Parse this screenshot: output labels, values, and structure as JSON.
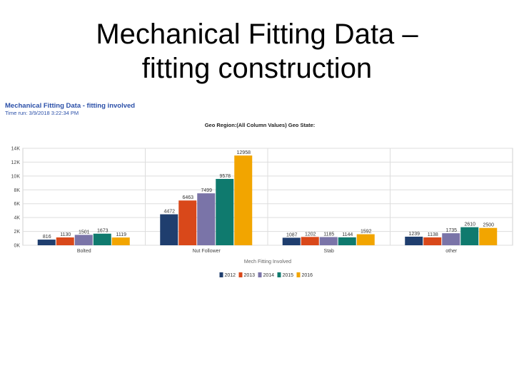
{
  "slide": {
    "title_line1": "Mechanical Fitting Data –",
    "title_line2": "fitting construction"
  },
  "report": {
    "title": "Mechanical Fitting Data - fitting involved",
    "run_time": "Time run: 3/9/2018 3:22:34 PM"
  },
  "colors": {
    "2012": "#1f3e6e",
    "2013": "#d9481a",
    "2014": "#7a74a8",
    "2015": "#0f7a6e",
    "2016": "#f2a500"
  },
  "chart_data": {
    "type": "bar",
    "title": "Geo Region:(All Column Values) Geo State:",
    "xlabel": "Mech Fitting Involved",
    "ylabel": "",
    "categories": [
      "Bolted",
      "Nut Follower",
      "Stab",
      "other"
    ],
    "ylim": [
      0,
      14000
    ],
    "yticks": [
      "0K",
      "2K",
      "4K",
      "6K",
      "8K",
      "10K",
      "12K",
      "14K"
    ],
    "grid": true,
    "legend_position": "bottom",
    "series": [
      {
        "name": "2012",
        "values": [
          816,
          4472,
          1087,
          1239
        ],
        "labels": [
          "816",
          "4472",
          "1087",
          "1239"
        ]
      },
      {
        "name": "2013",
        "values": [
          1130,
          6463,
          1202,
          1138
        ],
        "labels": [
          "1130",
          "6463",
          "1202",
          "1138"
        ]
      },
      {
        "name": "2014",
        "values": [
          1501,
          7499,
          1185,
          1735
        ],
        "labels": [
          "1501",
          "7499",
          "1185",
          "1735"
        ]
      },
      {
        "name": "2015",
        "values": [
          1673,
          9578,
          1144,
          2610
        ],
        "labels": [
          "1673",
          "9578",
          "1144",
          "2610"
        ]
      },
      {
        "name": "2016",
        "values": [
          1119,
          12958,
          1592,
          2500
        ],
        "labels": [
          "1119",
          "12958",
          "1592",
          "2500"
        ]
      }
    ]
  }
}
